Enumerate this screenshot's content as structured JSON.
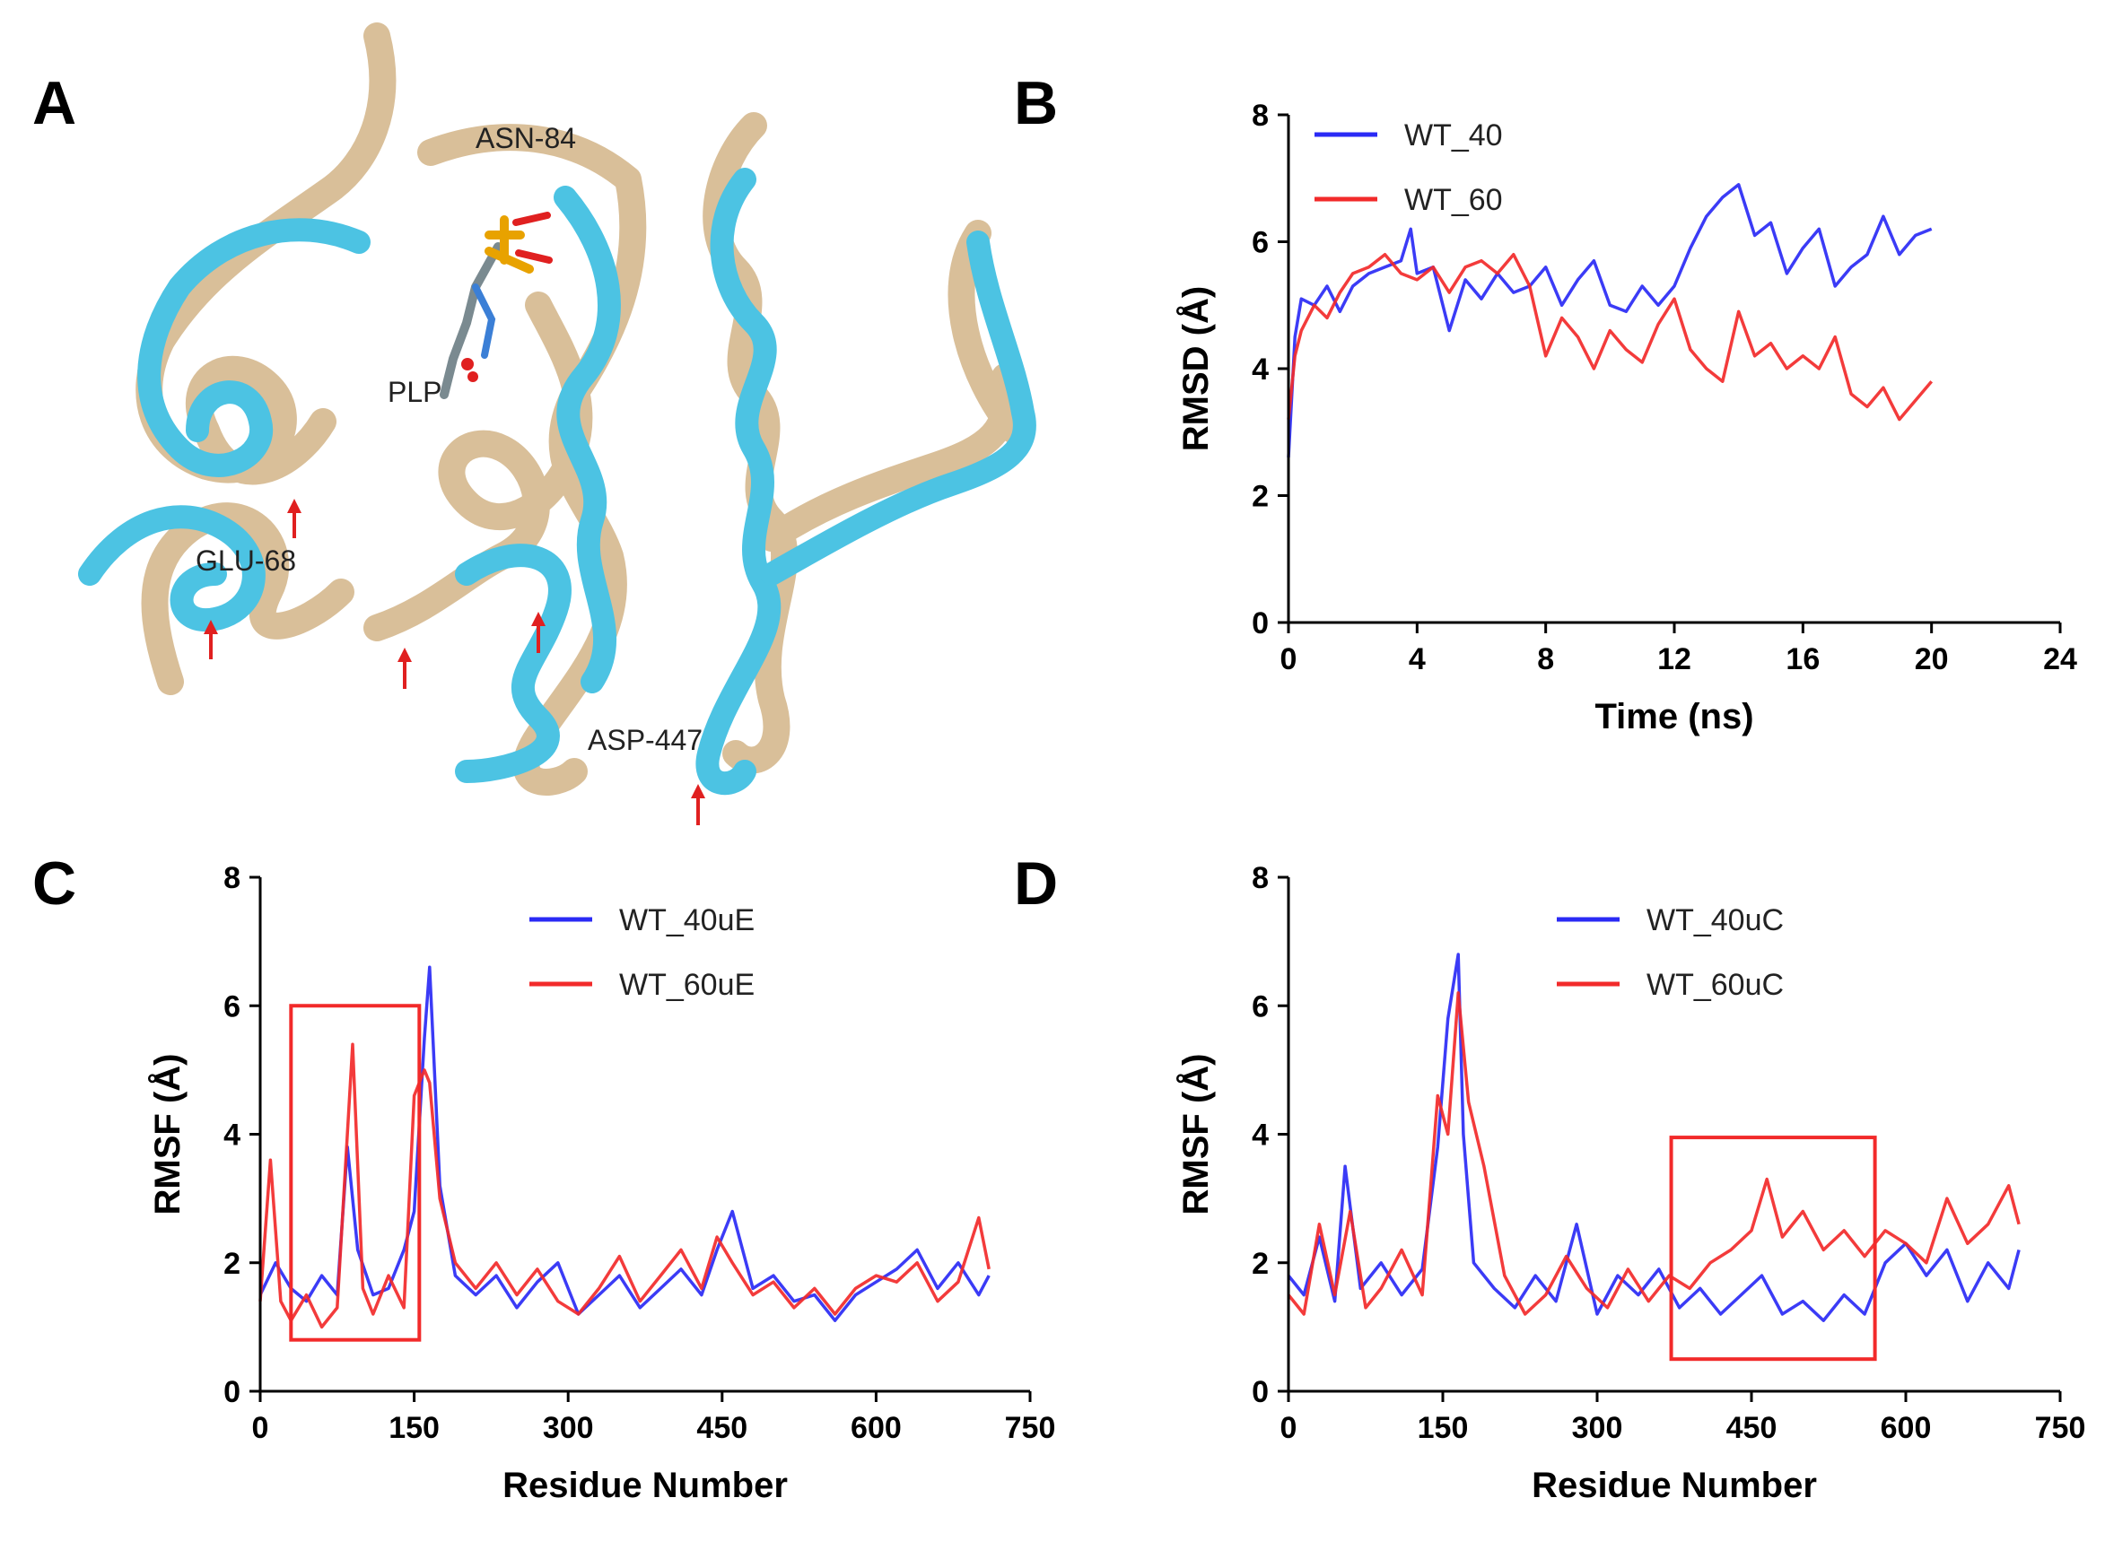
{
  "figure": {
    "panel_letters": [
      "A",
      "B",
      "C",
      "D"
    ]
  },
  "structure_panel": {
    "labels": [
      "ASN-84",
      "PLP",
      "GLU-68",
      "ASP-447"
    ],
    "colors": {
      "ribbon_tan": "#d9bf99",
      "ribbon_cyan": "#4cc3e3",
      "arrow": "#e02020"
    }
  },
  "chart_data": [
    {
      "id": "B",
      "type": "line",
      "title": "",
      "xlabel": "Time (ns)",
      "ylabel": "RMSD (Å)",
      "xlim": [
        0,
        24
      ],
      "ylim": [
        0,
        8
      ],
      "xticks": [
        0,
        4,
        8,
        12,
        16,
        20,
        24
      ],
      "yticks": [
        0,
        2,
        4,
        6,
        8
      ],
      "legend": "top-left",
      "series": [
        {
          "name": "WT_40",
          "color": "#2a2af5",
          "x": [
            0,
            0.2,
            0.4,
            0.8,
            1.2,
            1.6,
            2,
            2.5,
            3,
            3.5,
            3.8,
            4,
            4.5,
            5,
            5.5,
            6,
            6.5,
            7,
            7.5,
            8,
            8.5,
            9,
            9.5,
            10,
            10.5,
            11,
            11.5,
            12,
            12.5,
            13,
            13.5,
            14,
            14.5,
            15,
            15.5,
            16,
            16.5,
            17,
            17.5,
            18,
            18.5,
            19,
            19.5,
            20
          ],
          "y": [
            2.6,
            4.5,
            5.1,
            5.0,
            5.3,
            4.9,
            5.3,
            5.5,
            5.6,
            5.7,
            6.2,
            5.5,
            5.6,
            4.6,
            5.4,
            5.1,
            5.5,
            5.2,
            5.3,
            5.6,
            5.0,
            5.4,
            5.7,
            5.0,
            4.9,
            5.3,
            5.0,
            5.3,
            5.9,
            6.4,
            6.7,
            6.9,
            6.1,
            6.3,
            5.5,
            5.9,
            6.2,
            5.3,
            5.6,
            5.8,
            6.4,
            5.8,
            6.1,
            6.2
          ]
        },
        {
          "name": "WT_60",
          "color": "#f22a2a",
          "x": [
            0,
            0.2,
            0.4,
            0.8,
            1.2,
            1.6,
            2,
            2.5,
            3,
            3.5,
            4,
            4.5,
            5,
            5.5,
            6,
            6.5,
            7,
            7.5,
            8,
            8.5,
            9,
            9.5,
            10,
            10.5,
            11,
            11.5,
            12,
            12.5,
            13,
            13.5,
            14,
            14.5,
            15,
            15.5,
            16,
            16.5,
            17,
            17.5,
            18,
            18.5,
            19,
            19.5,
            20
          ],
          "y": [
            3.2,
            4.2,
            4.6,
            5.0,
            4.8,
            5.2,
            5.5,
            5.6,
            5.8,
            5.5,
            5.4,
            5.6,
            5.2,
            5.6,
            5.7,
            5.5,
            5.8,
            5.3,
            4.2,
            4.8,
            4.5,
            4.0,
            4.6,
            4.3,
            4.1,
            4.7,
            5.1,
            4.3,
            4.0,
            3.8,
            4.9,
            4.2,
            4.4,
            4.0,
            4.2,
            4.0,
            4.5,
            3.6,
            3.4,
            3.7,
            3.2,
            3.5,
            3.8
          ]
        }
      ]
    },
    {
      "id": "C",
      "type": "line",
      "title": "",
      "xlabel": "Residue Number",
      "ylabel": "RMSF  (Å)",
      "xlim": [
        0,
        750
      ],
      "ylim": [
        0,
        8
      ],
      "xticks": [
        0,
        150,
        300,
        450,
        600,
        750
      ],
      "yticks": [
        0,
        2,
        4,
        6,
        8
      ],
      "legend": "top-center",
      "highlight_box": {
        "x": [
          30,
          155
        ],
        "y": [
          0.8,
          6.0
        ],
        "color": "#f22a2a"
      },
      "series": [
        {
          "name": "WT_40uE",
          "color": "#2a2af5",
          "x": [
            0,
            15,
            30,
            45,
            60,
            75,
            85,
            95,
            110,
            125,
            140,
            150,
            160,
            165,
            175,
            190,
            210,
            230,
            250,
            270,
            290,
            310,
            330,
            350,
            370,
            390,
            410,
            430,
            445,
            460,
            480,
            500,
            520,
            540,
            560,
            580,
            600,
            620,
            640,
            660,
            680,
            700,
            710
          ],
          "y": [
            1.5,
            2.0,
            1.6,
            1.4,
            1.8,
            1.5,
            3.8,
            2.2,
            1.5,
            1.6,
            2.2,
            2.8,
            5.5,
            6.6,
            3.2,
            1.8,
            1.5,
            1.8,
            1.3,
            1.7,
            2.0,
            1.2,
            1.5,
            1.8,
            1.3,
            1.6,
            1.9,
            1.5,
            2.2,
            2.8,
            1.6,
            1.8,
            1.4,
            1.5,
            1.1,
            1.5,
            1.7,
            1.9,
            2.2,
            1.6,
            2.0,
            1.5,
            1.8
          ]
        },
        {
          "name": "WT_60uE",
          "color": "#f22a2a",
          "x": [
            0,
            10,
            20,
            30,
            45,
            60,
            75,
            90,
            100,
            110,
            125,
            140,
            150,
            160,
            165,
            175,
            190,
            210,
            230,
            250,
            270,
            290,
            310,
            330,
            350,
            370,
            390,
            410,
            430,
            445,
            460,
            480,
            500,
            520,
            540,
            560,
            580,
            600,
            620,
            640,
            660,
            680,
            700,
            710
          ],
          "y": [
            1.4,
            3.6,
            1.4,
            1.1,
            1.5,
            1.0,
            1.3,
            5.4,
            1.6,
            1.2,
            1.8,
            1.3,
            4.6,
            5.0,
            4.8,
            3.0,
            2.0,
            1.6,
            2.0,
            1.5,
            1.9,
            1.4,
            1.2,
            1.6,
            2.1,
            1.4,
            1.8,
            2.2,
            1.6,
            2.4,
            2.0,
            1.5,
            1.7,
            1.3,
            1.6,
            1.2,
            1.6,
            1.8,
            1.7,
            2.0,
            1.4,
            1.7,
            2.7,
            1.9
          ]
        }
      ]
    },
    {
      "id": "D",
      "type": "line",
      "title": "",
      "xlabel": "Residue Number",
      "ylabel": "RMSF  (Å)",
      "xlim": [
        0,
        750
      ],
      "ylim": [
        0,
        8
      ],
      "xticks": [
        0,
        150,
        300,
        450,
        600,
        750
      ],
      "yticks": [
        0,
        2,
        4,
        6,
        8
      ],
      "legend": "top-center",
      "highlight_box": {
        "x": [
          372,
          570
        ],
        "y": [
          0.5,
          3.95
        ],
        "color": "#f22a2a"
      },
      "series": [
        {
          "name": "WT_40uC",
          "color": "#2a2af5",
          "x": [
            0,
            15,
            30,
            45,
            55,
            70,
            90,
            110,
            130,
            145,
            155,
            165,
            170,
            180,
            200,
            220,
            240,
            260,
            280,
            300,
            320,
            340,
            360,
            380,
            400,
            420,
            440,
            460,
            480,
            500,
            520,
            540,
            560,
            580,
            600,
            620,
            640,
            660,
            680,
            700,
            710
          ],
          "y": [
            1.8,
            1.5,
            2.4,
            1.4,
            3.5,
            1.6,
            2.0,
            1.5,
            1.9,
            3.8,
            5.8,
            6.8,
            4.0,
            2.0,
            1.6,
            1.3,
            1.8,
            1.4,
            2.6,
            1.2,
            1.8,
            1.5,
            1.9,
            1.3,
            1.6,
            1.2,
            1.5,
            1.8,
            1.2,
            1.4,
            1.1,
            1.5,
            1.2,
            2.0,
            2.3,
            1.8,
            2.2,
            1.4,
            2.0,
            1.6,
            2.2
          ]
        },
        {
          "name": "WT_60uC",
          "color": "#f22a2a",
          "x": [
            0,
            15,
            30,
            45,
            60,
            75,
            90,
            110,
            130,
            145,
            155,
            165,
            175,
            190,
            210,
            230,
            250,
            270,
            290,
            310,
            330,
            350,
            370,
            390,
            410,
            430,
            450,
            465,
            480,
            500,
            520,
            540,
            560,
            580,
            600,
            620,
            640,
            660,
            680,
            700,
            710
          ],
          "y": [
            1.5,
            1.2,
            2.6,
            1.5,
            2.8,
            1.3,
            1.6,
            2.2,
            1.5,
            4.6,
            4.0,
            6.2,
            4.5,
            3.5,
            1.8,
            1.2,
            1.5,
            2.1,
            1.6,
            1.3,
            1.9,
            1.4,
            1.8,
            1.6,
            2.0,
            2.2,
            2.5,
            3.3,
            2.4,
            2.8,
            2.2,
            2.5,
            2.1,
            2.5,
            2.3,
            2.0,
            3.0,
            2.3,
            2.6,
            3.2,
            2.6
          ]
        }
      ]
    }
  ]
}
